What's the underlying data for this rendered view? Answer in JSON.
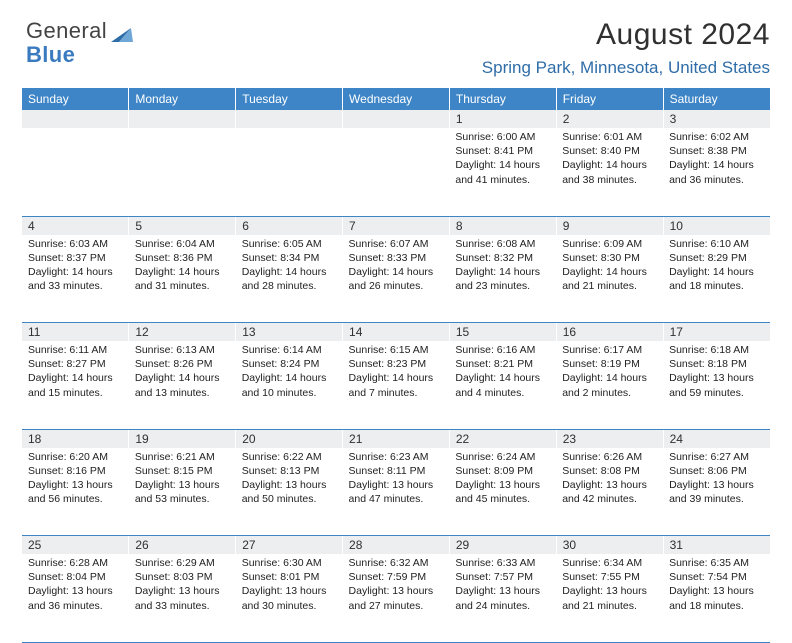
{
  "brand": {
    "part1": "General",
    "part2": "Blue"
  },
  "header": {
    "month_title": "August 2024",
    "location": "Spring Park, Minnesota, United States"
  },
  "theme": {
    "header_bg": "#3d85c6",
    "header_fg": "#ffffff",
    "daynum_bg": "#eceeef",
    "rule_color": "#3d85c6",
    "title_color": "#303030",
    "loc_color": "#2f6da8"
  },
  "daysOfWeek": [
    "Sunday",
    "Monday",
    "Tuesday",
    "Wednesday",
    "Thursday",
    "Friday",
    "Saturday"
  ],
  "weeks": [
    [
      null,
      null,
      null,
      null,
      {
        "n": "1",
        "sr": "Sunrise: 6:00 AM",
        "ss": "Sunset: 8:41 PM",
        "d1": "Daylight: 14 hours",
        "d2": "and 41 minutes."
      },
      {
        "n": "2",
        "sr": "Sunrise: 6:01 AM",
        "ss": "Sunset: 8:40 PM",
        "d1": "Daylight: 14 hours",
        "d2": "and 38 minutes."
      },
      {
        "n": "3",
        "sr": "Sunrise: 6:02 AM",
        "ss": "Sunset: 8:38 PM",
        "d1": "Daylight: 14 hours",
        "d2": "and 36 minutes."
      }
    ],
    [
      {
        "n": "4",
        "sr": "Sunrise: 6:03 AM",
        "ss": "Sunset: 8:37 PM",
        "d1": "Daylight: 14 hours",
        "d2": "and 33 minutes."
      },
      {
        "n": "5",
        "sr": "Sunrise: 6:04 AM",
        "ss": "Sunset: 8:36 PM",
        "d1": "Daylight: 14 hours",
        "d2": "and 31 minutes."
      },
      {
        "n": "6",
        "sr": "Sunrise: 6:05 AM",
        "ss": "Sunset: 8:34 PM",
        "d1": "Daylight: 14 hours",
        "d2": "and 28 minutes."
      },
      {
        "n": "7",
        "sr": "Sunrise: 6:07 AM",
        "ss": "Sunset: 8:33 PM",
        "d1": "Daylight: 14 hours",
        "d2": "and 26 minutes."
      },
      {
        "n": "8",
        "sr": "Sunrise: 6:08 AM",
        "ss": "Sunset: 8:32 PM",
        "d1": "Daylight: 14 hours",
        "d2": "and 23 minutes."
      },
      {
        "n": "9",
        "sr": "Sunrise: 6:09 AM",
        "ss": "Sunset: 8:30 PM",
        "d1": "Daylight: 14 hours",
        "d2": "and 21 minutes."
      },
      {
        "n": "10",
        "sr": "Sunrise: 6:10 AM",
        "ss": "Sunset: 8:29 PM",
        "d1": "Daylight: 14 hours",
        "d2": "and 18 minutes."
      }
    ],
    [
      {
        "n": "11",
        "sr": "Sunrise: 6:11 AM",
        "ss": "Sunset: 8:27 PM",
        "d1": "Daylight: 14 hours",
        "d2": "and 15 minutes."
      },
      {
        "n": "12",
        "sr": "Sunrise: 6:13 AM",
        "ss": "Sunset: 8:26 PM",
        "d1": "Daylight: 14 hours",
        "d2": "and 13 minutes."
      },
      {
        "n": "13",
        "sr": "Sunrise: 6:14 AM",
        "ss": "Sunset: 8:24 PM",
        "d1": "Daylight: 14 hours",
        "d2": "and 10 minutes."
      },
      {
        "n": "14",
        "sr": "Sunrise: 6:15 AM",
        "ss": "Sunset: 8:23 PM",
        "d1": "Daylight: 14 hours",
        "d2": "and 7 minutes."
      },
      {
        "n": "15",
        "sr": "Sunrise: 6:16 AM",
        "ss": "Sunset: 8:21 PM",
        "d1": "Daylight: 14 hours",
        "d2": "and 4 minutes."
      },
      {
        "n": "16",
        "sr": "Sunrise: 6:17 AM",
        "ss": "Sunset: 8:19 PM",
        "d1": "Daylight: 14 hours",
        "d2": "and 2 minutes."
      },
      {
        "n": "17",
        "sr": "Sunrise: 6:18 AM",
        "ss": "Sunset: 8:18 PM",
        "d1": "Daylight: 13 hours",
        "d2": "and 59 minutes."
      }
    ],
    [
      {
        "n": "18",
        "sr": "Sunrise: 6:20 AM",
        "ss": "Sunset: 8:16 PM",
        "d1": "Daylight: 13 hours",
        "d2": "and 56 minutes."
      },
      {
        "n": "19",
        "sr": "Sunrise: 6:21 AM",
        "ss": "Sunset: 8:15 PM",
        "d1": "Daylight: 13 hours",
        "d2": "and 53 minutes."
      },
      {
        "n": "20",
        "sr": "Sunrise: 6:22 AM",
        "ss": "Sunset: 8:13 PM",
        "d1": "Daylight: 13 hours",
        "d2": "and 50 minutes."
      },
      {
        "n": "21",
        "sr": "Sunrise: 6:23 AM",
        "ss": "Sunset: 8:11 PM",
        "d1": "Daylight: 13 hours",
        "d2": "and 47 minutes."
      },
      {
        "n": "22",
        "sr": "Sunrise: 6:24 AM",
        "ss": "Sunset: 8:09 PM",
        "d1": "Daylight: 13 hours",
        "d2": "and 45 minutes."
      },
      {
        "n": "23",
        "sr": "Sunrise: 6:26 AM",
        "ss": "Sunset: 8:08 PM",
        "d1": "Daylight: 13 hours",
        "d2": "and 42 minutes."
      },
      {
        "n": "24",
        "sr": "Sunrise: 6:27 AM",
        "ss": "Sunset: 8:06 PM",
        "d1": "Daylight: 13 hours",
        "d2": "and 39 minutes."
      }
    ],
    [
      {
        "n": "25",
        "sr": "Sunrise: 6:28 AM",
        "ss": "Sunset: 8:04 PM",
        "d1": "Daylight: 13 hours",
        "d2": "and 36 minutes."
      },
      {
        "n": "26",
        "sr": "Sunrise: 6:29 AM",
        "ss": "Sunset: 8:03 PM",
        "d1": "Daylight: 13 hours",
        "d2": "and 33 minutes."
      },
      {
        "n": "27",
        "sr": "Sunrise: 6:30 AM",
        "ss": "Sunset: 8:01 PM",
        "d1": "Daylight: 13 hours",
        "d2": "and 30 minutes."
      },
      {
        "n": "28",
        "sr": "Sunrise: 6:32 AM",
        "ss": "Sunset: 7:59 PM",
        "d1": "Daylight: 13 hours",
        "d2": "and 27 minutes."
      },
      {
        "n": "29",
        "sr": "Sunrise: 6:33 AM",
        "ss": "Sunset: 7:57 PM",
        "d1": "Daylight: 13 hours",
        "d2": "and 24 minutes."
      },
      {
        "n": "30",
        "sr": "Sunrise: 6:34 AM",
        "ss": "Sunset: 7:55 PM",
        "d1": "Daylight: 13 hours",
        "d2": "and 21 minutes."
      },
      {
        "n": "31",
        "sr": "Sunrise: 6:35 AM",
        "ss": "Sunset: 7:54 PM",
        "d1": "Daylight: 13 hours",
        "d2": "and 18 minutes."
      }
    ]
  ]
}
